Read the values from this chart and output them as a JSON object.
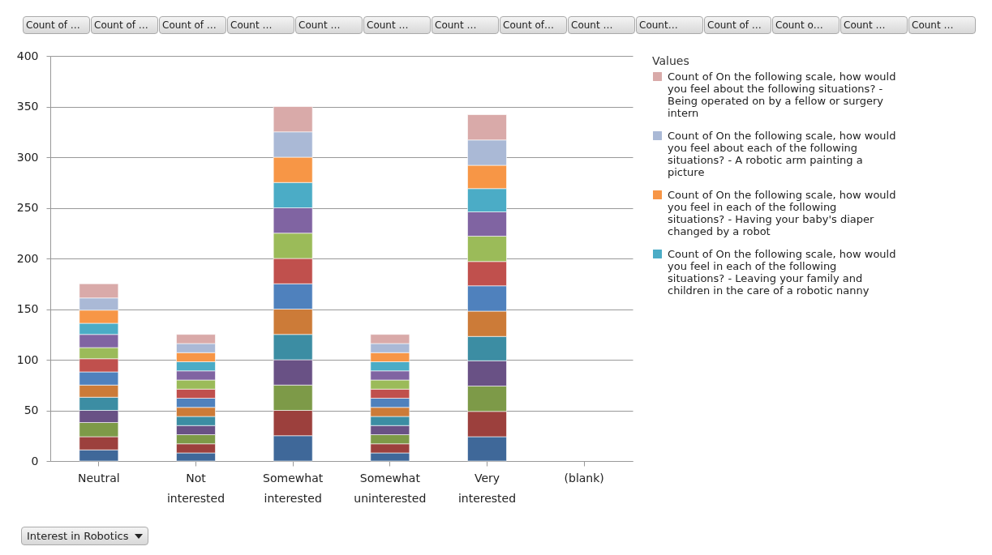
{
  "chart_data": {
    "type": "bar",
    "stacked": true,
    "xlabel": "Interest in Robotics",
    "legend_title": "Values",
    "categories": [
      "Neutral",
      "Not interested",
      "Somewhat interested",
      "Somewhat uninterested",
      "Very interested",
      "(blank)"
    ],
    "series": [
      {
        "color": "#3f6899",
        "values": [
          11,
          8,
          25,
          8,
          24,
          null
        ]
      },
      {
        "color": "#9c403d",
        "values": [
          13,
          9,
          25,
          9,
          25,
          null
        ]
      },
      {
        "color": "#7d9a48",
        "values": [
          14,
          9,
          25,
          9,
          25,
          null
        ]
      },
      {
        "color": "#695185",
        "values": [
          12,
          9,
          25,
          9,
          25,
          null
        ]
      },
      {
        "color": "#3c8da3",
        "values": [
          13,
          9,
          25,
          9,
          24,
          null
        ]
      },
      {
        "color": "#cc7b38",
        "values": [
          12,
          9,
          25,
          9,
          25,
          null
        ]
      },
      {
        "color": "#4f81bd",
        "values": [
          13,
          9,
          25,
          9,
          25,
          null
        ]
      },
      {
        "color": "#c0504d",
        "values": [
          13,
          9,
          25,
          9,
          24,
          null
        ]
      },
      {
        "color": "#9bbb59",
        "values": [
          11,
          9,
          25,
          9,
          25,
          null
        ]
      },
      {
        "color": "#8064a2",
        "values": [
          13,
          9,
          25,
          9,
          24,
          null
        ]
      },
      {
        "name": "Count of On the following scale, how would you feel in each of the following situations? - Leaving your family and children in the care of a robotic nanny",
        "color": "#4bacc6",
        "values": [
          11,
          9,
          25,
          9,
          23,
          null
        ]
      },
      {
        "name": "Count of On the following scale, how would you feel in each of the following situations? - Having your baby's diaper changed by a robot",
        "color": "#f79646",
        "values": [
          13,
          9,
          25,
          9,
          23,
          null
        ]
      },
      {
        "name": "Count of On the following scale, how would you feel about each of the following situations? - A robotic arm painting a picture",
        "color": "#aab9d6",
        "values": [
          12,
          9,
          25,
          9,
          25,
          null
        ]
      },
      {
        "name": "Count of On the following scale, how would you feel about the following situations? - Being operated on by a fellow or surgery intern",
        "color": "#d9aaa9",
        "values": [
          14,
          9,
          25,
          9,
          25,
          null
        ]
      }
    ],
    "ylim": [
      0,
      400
    ],
    "yticks": [
      0,
      50,
      100,
      150,
      200,
      250,
      300,
      350,
      400
    ],
    "grid": "y",
    "legend": "right",
    "annotations": [
      "Count of …",
      "Count of …",
      "Count of …",
      "Count …",
      "Count …",
      "Count …",
      "Count …",
      "Count of…",
      "Count …",
      "Count…",
      "Count of …",
      "Count o…",
      "Count …",
      "Count …"
    ]
  }
}
